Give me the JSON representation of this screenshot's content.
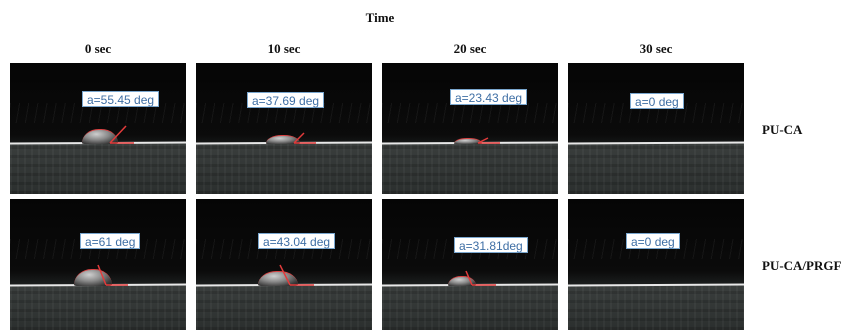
{
  "figure": {
    "title": "Time",
    "time_labels": [
      "0 sec",
      "10 sec",
      "20 sec",
      "30 sec"
    ],
    "rows": [
      {
        "label": "PU-CA",
        "panels": [
          {
            "angle_text": "a=55.45 deg",
            "contact_angle_deg": 55.45
          },
          {
            "angle_text": "a=37.69 deg",
            "contact_angle_deg": 37.69
          },
          {
            "angle_text": "a=23.43 deg",
            "contact_angle_deg": 23.43
          },
          {
            "angle_text": "a=0 deg",
            "contact_angle_deg": 0
          }
        ]
      },
      {
        "label": "PU-CA/PRGF",
        "panels": [
          {
            "angle_text": "a=61 deg",
            "contact_angle_deg": 61
          },
          {
            "angle_text": "a=43.04 deg",
            "contact_angle_deg": 43.04
          },
          {
            "angle_text": "a=31.81deg",
            "contact_angle_deg": 31.81
          },
          {
            "angle_text": "a=0 deg",
            "contact_angle_deg": 0
          }
        ]
      }
    ]
  },
  "colors": {
    "angle_line": "#e23b3b",
    "label_text": "#3f6fa5",
    "label_border": "#7aa7cf"
  }
}
